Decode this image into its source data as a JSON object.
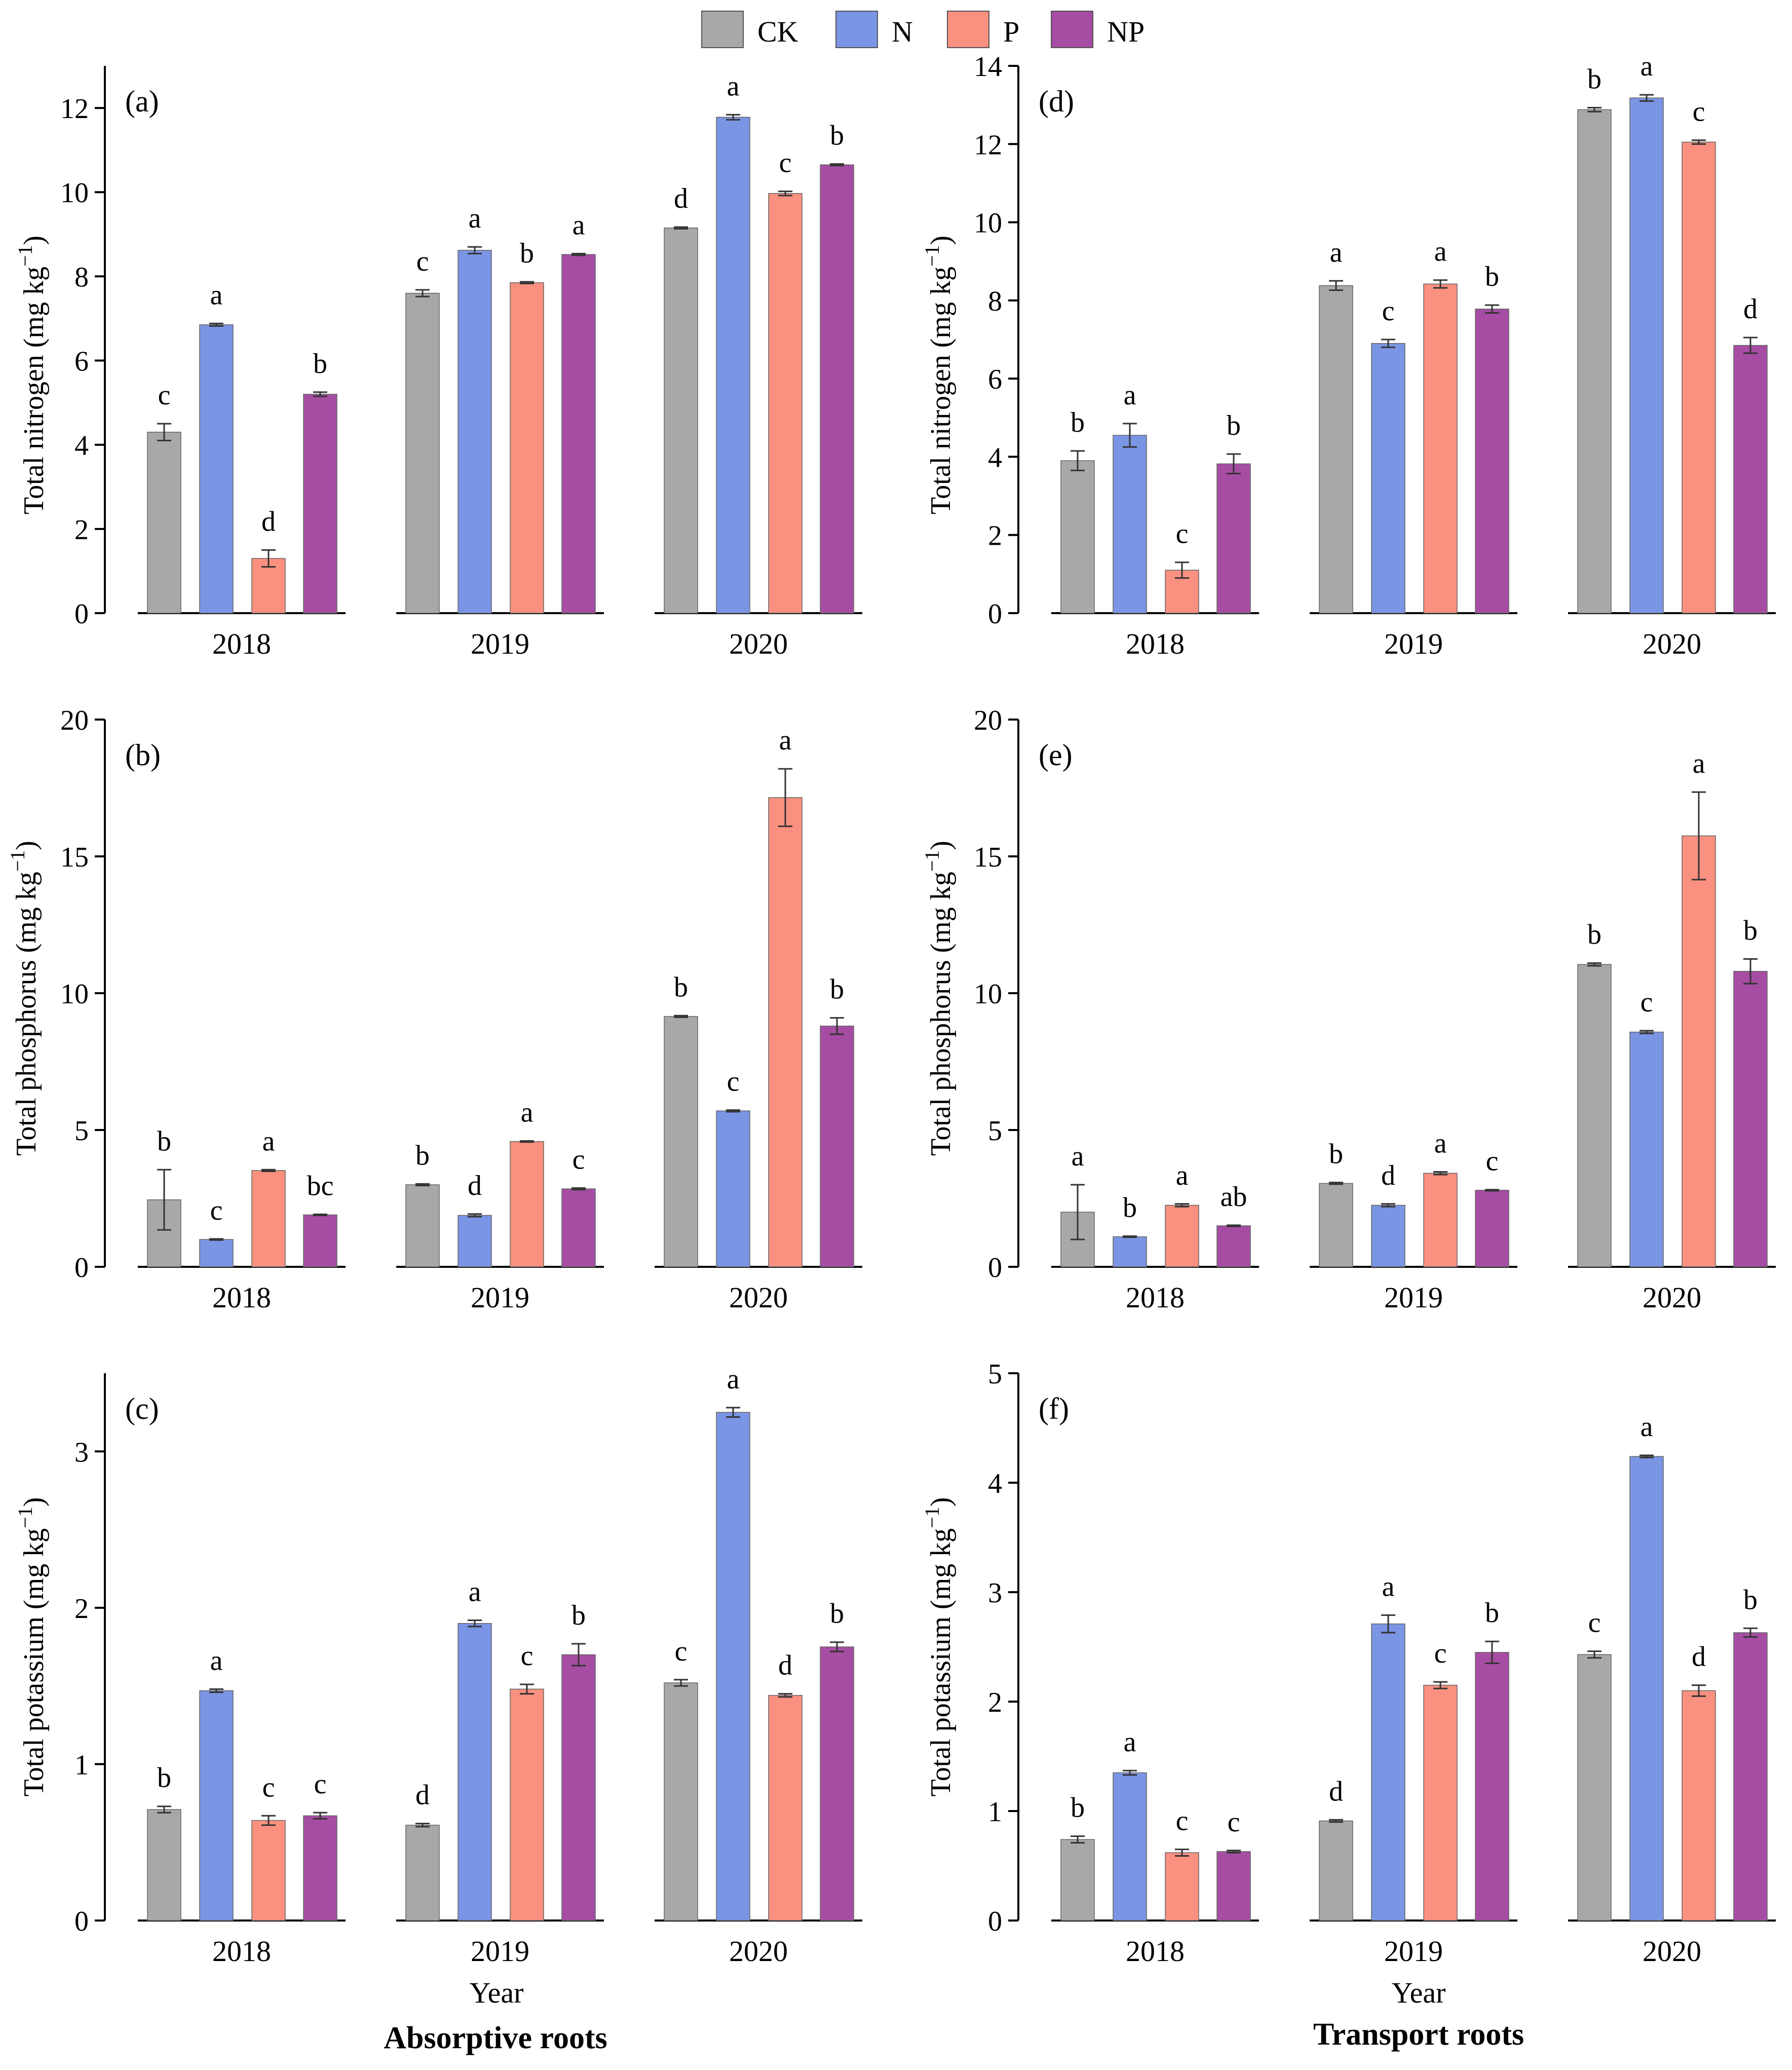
{
  "legend": {
    "items": [
      {
        "label": "CK",
        "color": "#a8a8a8"
      },
      {
        "label": "N",
        "color": "#7b95e5"
      },
      {
        "label": "P",
        "color": "#f99080"
      },
      {
        "label": "NP",
        "color": "#a64da3"
      }
    ]
  },
  "bottom": {
    "left_xlabel": "Year",
    "right_xlabel": "Year",
    "left_title": "Absorptive roots",
    "right_title": "Transport roots"
  },
  "chart_data": [
    {
      "type": "bar",
      "panel": "(a)",
      "ylabel": "Total nitrogen (mg kg",
      "ylabel_sup": "−1",
      "ylabel_close": ")",
      "ylim": [
        0,
        13
      ],
      "yticks": [
        0,
        2,
        4,
        6,
        8,
        10,
        12
      ],
      "categories": [
        "2018",
        "2019",
        "2020"
      ],
      "series": [
        {
          "name": "CK",
          "values": [
            4.3,
            7.6,
            9.15
          ],
          "errors": [
            0.2,
            0.08,
            0.02
          ],
          "letters": [
            "c",
            "c",
            "d"
          ]
        },
        {
          "name": "N",
          "values": [
            6.85,
            8.62,
            11.78
          ],
          "errors": [
            0.03,
            0.08,
            0.06
          ],
          "letters": [
            "a",
            "a",
            "a"
          ]
        },
        {
          "name": "P",
          "values": [
            1.3,
            7.85,
            9.97
          ],
          "errors": [
            0.2,
            0.02,
            0.05
          ],
          "letters": [
            "d",
            "b",
            "c"
          ]
        },
        {
          "name": "NP",
          "values": [
            5.2,
            8.52,
            10.65
          ],
          "errors": [
            0.05,
            0.02,
            0.02
          ],
          "letters": [
            "b",
            "a",
            "b"
          ]
        }
      ]
    },
    {
      "type": "bar",
      "panel": "(b)",
      "ylabel": "Total phosphorus (mg kg",
      "ylabel_sup": "−1",
      "ylabel_close": ")",
      "ylim": [
        0,
        20
      ],
      "yticks": [
        0,
        5,
        10,
        15,
        20
      ],
      "categories": [
        "2018",
        "2019",
        "2020"
      ],
      "series": [
        {
          "name": "CK",
          "values": [
            2.45,
            3.0,
            9.15
          ],
          "errors": [
            1.1,
            0.03,
            0.03
          ],
          "letters": [
            "b",
            "b",
            "b"
          ]
        },
        {
          "name": "N",
          "values": [
            1.0,
            1.88,
            5.7
          ],
          "errors": [
            0.02,
            0.05,
            0.03
          ],
          "letters": [
            "c",
            "d",
            "c"
          ]
        },
        {
          "name": "P",
          "values": [
            3.52,
            4.58,
            17.15
          ],
          "errors": [
            0.03,
            0.02,
            1.05
          ],
          "letters": [
            "a",
            "a",
            "a"
          ]
        },
        {
          "name": "NP",
          "values": [
            1.9,
            2.85,
            8.8
          ],
          "errors": [
            0.02,
            0.03,
            0.3
          ],
          "letters": [
            "bc",
            "c",
            "b"
          ]
        }
      ]
    },
    {
      "type": "bar",
      "panel": "(c)",
      "ylabel": "Total potassium (mg kg",
      "ylabel_sup": "−1",
      "ylabel_close": ")",
      "ylim": [
        0,
        3.5
      ],
      "yticks": [
        0,
        1,
        2,
        3
      ],
      "categories": [
        "2018",
        "2019",
        "2020"
      ],
      "series": [
        {
          "name": "CK",
          "values": [
            0.71,
            0.61,
            1.52
          ],
          "errors": [
            0.02,
            0.01,
            0.02
          ],
          "letters": [
            "b",
            "d",
            "c"
          ]
        },
        {
          "name": "N",
          "values": [
            1.47,
            1.9,
            3.25
          ],
          "errors": [
            0.01,
            0.02,
            0.03
          ],
          "letters": [
            "a",
            "a",
            "a"
          ]
        },
        {
          "name": "P",
          "values": [
            0.64,
            1.48,
            1.44
          ],
          "errors": [
            0.03,
            0.03,
            0.01
          ],
          "letters": [
            "c",
            "c",
            "d"
          ]
        },
        {
          "name": "NP",
          "values": [
            0.67,
            1.7,
            1.75
          ],
          "errors": [
            0.02,
            0.07,
            0.03
          ],
          "letters": [
            "c",
            "b",
            "b"
          ]
        }
      ]
    },
    {
      "type": "bar",
      "panel": "(d)",
      "ylabel": "Total nitrogen (mg kg",
      "ylabel_sup": "−1",
      "ylabel_close": ")",
      "ylim": [
        0,
        14
      ],
      "yticks": [
        0,
        2,
        4,
        6,
        8,
        10,
        12,
        14
      ],
      "categories": [
        "2018",
        "2019",
        "2020"
      ],
      "series": [
        {
          "name": "CK",
          "values": [
            3.9,
            8.38,
            12.88
          ],
          "errors": [
            0.25,
            0.12,
            0.05
          ],
          "letters": [
            "b",
            "a",
            "b"
          ]
        },
        {
          "name": "N",
          "values": [
            4.55,
            6.9,
            13.18
          ],
          "errors": [
            0.3,
            0.1,
            0.08
          ],
          "letters": [
            "a",
            "c",
            "a"
          ]
        },
        {
          "name": "P",
          "values": [
            1.1,
            8.42,
            12.05
          ],
          "errors": [
            0.2,
            0.1,
            0.05
          ],
          "letters": [
            "c",
            "a",
            "c"
          ]
        },
        {
          "name": "NP",
          "values": [
            3.82,
            7.78,
            6.85
          ],
          "errors": [
            0.25,
            0.1,
            0.2
          ],
          "letters": [
            "b",
            "b",
            "d"
          ]
        }
      ]
    },
    {
      "type": "bar",
      "panel": "(e)",
      "ylabel": "Total phosphorus (mg kg",
      "ylabel_sup": "−1",
      "ylabel_close": ")",
      "ylim": [
        0,
        20
      ],
      "yticks": [
        0,
        5,
        10,
        15,
        20
      ],
      "categories": [
        "2018",
        "2019",
        "2020"
      ],
      "series": [
        {
          "name": "CK",
          "values": [
            2.0,
            3.05,
            11.05
          ],
          "errors": [
            1.0,
            0.03,
            0.05
          ],
          "letters": [
            "a",
            "b",
            "b"
          ]
        },
        {
          "name": "N",
          "values": [
            1.1,
            2.25,
            8.58
          ],
          "errors": [
            0.02,
            0.05,
            0.05
          ],
          "letters": [
            "b",
            "d",
            "c"
          ]
        },
        {
          "name": "P",
          "values": [
            2.25,
            3.42,
            15.75
          ],
          "errors": [
            0.05,
            0.05,
            1.6
          ],
          "letters": [
            "a",
            "a",
            "a"
          ]
        },
        {
          "name": "NP",
          "values": [
            1.5,
            2.8,
            10.8
          ],
          "errors": [
            0.02,
            0.02,
            0.45
          ],
          "letters": [
            "ab",
            "c",
            "b"
          ]
        }
      ]
    },
    {
      "type": "bar",
      "panel": "(f)",
      "ylabel": "Total potassium (mg kg",
      "ylabel_sup": "−1",
      "ylabel_close": ")",
      "ylim": [
        0,
        5
      ],
      "yticks": [
        0,
        1,
        2,
        3,
        4,
        5
      ],
      "categories": [
        "2018",
        "2019",
        "2020"
      ],
      "series": [
        {
          "name": "CK",
          "values": [
            0.74,
            0.91,
            2.43
          ],
          "errors": [
            0.03,
            0.01,
            0.03
          ],
          "letters": [
            "b",
            "d",
            "c"
          ]
        },
        {
          "name": "N",
          "values": [
            1.35,
            2.71,
            4.24
          ],
          "errors": [
            0.02,
            0.08,
            0.01
          ],
          "letters": [
            "a",
            "a",
            "a"
          ]
        },
        {
          "name": "P",
          "values": [
            0.62,
            2.15,
            2.1
          ],
          "errors": [
            0.03,
            0.03,
            0.05
          ],
          "letters": [
            "c",
            "c",
            "d"
          ]
        },
        {
          "name": "NP",
          "values": [
            0.63,
            2.45,
            2.63
          ],
          "errors": [
            0.01,
            0.1,
            0.04
          ],
          "letters": [
            "c",
            "b",
            "b"
          ]
        }
      ]
    }
  ]
}
